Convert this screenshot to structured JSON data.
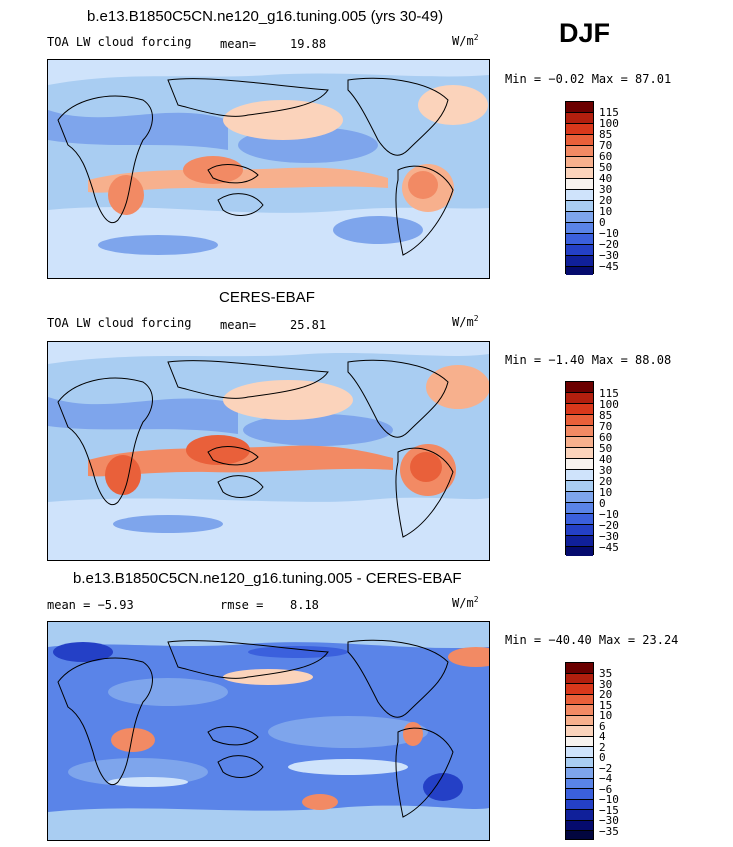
{
  "season": "DJF",
  "panels": [
    {
      "title": "b.e13.B1850C5CN.ne120_g16.tuning.005 (yrs 30-49)",
      "left_label": "TOA LW cloud forcing",
      "stat_label": "mean=",
      "stat_value": "19.88",
      "units": "W/m",
      "units_exp": "2",
      "minmax": "Min =  −0.02 Max =  87.01",
      "colorbar_labels": [
        "115",
        "100",
        "85",
        "70",
        "60",
        "50",
        "40",
        "30",
        "20",
        "10",
        "0",
        "−10",
        "−20",
        "−30",
        "−45"
      ],
      "colorbar_colors": [
        "#6b0000",
        "#b21f0e",
        "#d9381b",
        "#e9603a",
        "#f28a64",
        "#f7b08d",
        "#fbd3bb",
        "#f7f2ee",
        "#cfe3fb",
        "#a9cdf2",
        "#7ea5ec",
        "#5a84e8",
        "#3b60dd",
        "#2440c6",
        "#10209a",
        "#050b6e"
      ]
    },
    {
      "title": "CERES-EBAF",
      "left_label": "TOA LW cloud forcing",
      "stat_label": "mean=",
      "stat_value": "25.81",
      "units": "W/m",
      "units_exp": "2",
      "minmax": "Min =  −1.40 Max =  88.08",
      "colorbar_labels": [
        "115",
        "100",
        "85",
        "70",
        "60",
        "50",
        "40",
        "30",
        "20",
        "10",
        "0",
        "−10",
        "−20",
        "−30",
        "−45"
      ],
      "colorbar_colors": [
        "#6b0000",
        "#b21f0e",
        "#d9381b",
        "#e9603a",
        "#f28a64",
        "#f7b08d",
        "#fbd3bb",
        "#f7f2ee",
        "#cfe3fb",
        "#a9cdf2",
        "#7ea5ec",
        "#5a84e8",
        "#3b60dd",
        "#2440c6",
        "#10209a",
        "#050b6e"
      ]
    },
    {
      "title": "b.e13.B1850C5CN.ne120_g16.tuning.005 - CERES-EBAF",
      "left_label": "mean =   −5.93",
      "stat_label": "rmse =",
      "stat_value": "8.18",
      "units": "W/m",
      "units_exp": "2",
      "minmax": "Min = −40.40 Max =  23.24",
      "colorbar_labels": [
        "35",
        "30",
        "20",
        "15",
        "10",
        "6",
        "4",
        "2",
        "0",
        "−2",
        "−4",
        "−6",
        "−10",
        "−15",
        "−30",
        "−35"
      ],
      "colorbar_colors": [
        "#6b0000",
        "#b21f0e",
        "#d9381b",
        "#e9603a",
        "#f28a64",
        "#f7b08d",
        "#fbd3bb",
        "#f7f2ee",
        "#cfe3fb",
        "#a9cdf2",
        "#7ea5ec",
        "#5a84e8",
        "#3b60dd",
        "#2440c6",
        "#10209a",
        "#050b6e",
        "#02063f"
      ]
    }
  ]
}
